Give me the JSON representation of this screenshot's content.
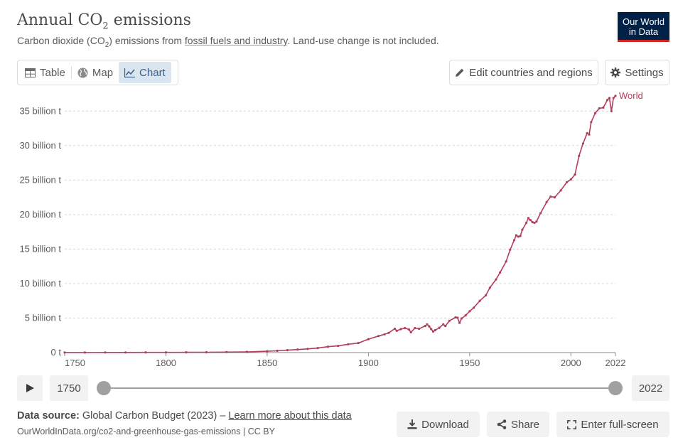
{
  "header": {
    "title_main": "Annual CO",
    "title_sub": "2",
    "title_end": " emissions",
    "subtitle_a": "Carbon dioxide (CO",
    "subtitle_sub": "2",
    "subtitle_b": ") emissions from ",
    "subtitle_link": "fossil fuels and industry",
    "subtitle_c": ". Land-use change is not included.",
    "logo_line1": "Our World",
    "logo_line2": "in Data"
  },
  "tabs": [
    {
      "label": "Table",
      "icon": "table-icon"
    },
    {
      "label": "Map",
      "icon": "globe-icon"
    },
    {
      "label": "Chart",
      "icon": "line-chart-icon",
      "active": true
    }
  ],
  "toolbar": {
    "edit_label": "Edit countries and regions",
    "settings_label": "Settings"
  },
  "timeline": {
    "start_label": "1750",
    "end_label": "2022"
  },
  "footer": {
    "source_label": "Data source:",
    "source_text": " Global Carbon Budget (2023) – ",
    "learn_more": "Learn more about this data",
    "url": "OurWorldInData.org/co2-and-greenhouse-gas-emissions | CC BY",
    "download_label": "Download",
    "share_label": "Share",
    "fullscreen_label": "Enter full-screen"
  },
  "colors": {
    "series": "#b13f5a",
    "accent": "#3a5f8a",
    "logo_bg": "#002147",
    "logo_bar": "#ce261e"
  },
  "chart_data": {
    "type": "line",
    "grid": true,
    "ylim": [
      0,
      37.5
    ],
    "xlim": [
      1750,
      2022
    ],
    "x_ticks": [
      1750,
      1800,
      1850,
      1900,
      1950,
      2000,
      2022
    ],
    "y_ticks": [
      {
        "value": 0,
        "label": "0 t"
      },
      {
        "value": 5,
        "label": "5 billion t"
      },
      {
        "value": 10,
        "label": "10 billion t"
      },
      {
        "value": 15,
        "label": "15 billion t"
      },
      {
        "value": 20,
        "label": "20 billion t"
      },
      {
        "value": 25,
        "label": "25 billion t"
      },
      {
        "value": 30,
        "label": "30 billion t"
      },
      {
        "value": 35,
        "label": "35 billion t"
      }
    ],
    "series": [
      {
        "name": "World",
        "x": [
          1750,
          1760,
          1770,
          1780,
          1790,
          1800,
          1810,
          1820,
          1830,
          1840,
          1850,
          1855,
          1860,
          1865,
          1870,
          1875,
          1880,
          1885,
          1890,
          1895,
          1900,
          1905,
          1908,
          1910,
          1913,
          1914,
          1916,
          1918,
          1920,
          1921,
          1923,
          1925,
          1928,
          1929,
          1930,
          1931,
          1932,
          1933,
          1935,
          1937,
          1938,
          1940,
          1943,
          1944,
          1945,
          1946,
          1948,
          1950,
          1952,
          1955,
          1958,
          1960,
          1963,
          1965,
          1968,
          1970,
          1972,
          1973,
          1974,
          1975,
          1976,
          1978,
          1979,
          1980,
          1981,
          1982,
          1983,
          1985,
          1988,
          1990,
          1992,
          1995,
          1998,
          2000,
          2002,
          2004,
          2006,
          2008,
          2009,
          2010,
          2012,
          2014,
          2016,
          2018,
          2019,
          2020,
          2021,
          2022
        ],
        "y": [
          0.01,
          0.01,
          0.02,
          0.02,
          0.03,
          0.03,
          0.04,
          0.05,
          0.07,
          0.1,
          0.2,
          0.26,
          0.35,
          0.44,
          0.54,
          0.66,
          0.85,
          0.97,
          1.21,
          1.38,
          1.95,
          2.4,
          2.65,
          2.85,
          3.45,
          3.15,
          3.4,
          3.55,
          3.35,
          2.95,
          3.55,
          3.45,
          3.85,
          4.1,
          3.8,
          3.4,
          3.05,
          3.25,
          3.6,
          4.1,
          3.85,
          4.6,
          5.1,
          5.05,
          4.3,
          4.95,
          5.4,
          6.0,
          6.5,
          7.5,
          8.3,
          9.4,
          10.6,
          11.6,
          13.2,
          14.9,
          16.3,
          17.0,
          16.8,
          16.9,
          17.8,
          18.8,
          19.5,
          19.2,
          18.9,
          18.8,
          19.0,
          20.2,
          21.8,
          22.6,
          22.5,
          23.5,
          24.7,
          25.1,
          25.8,
          28.5,
          30.3,
          31.8,
          31.6,
          33.4,
          34.7,
          35.4,
          35.5,
          36.6,
          36.9,
          35.0,
          36.9,
          37.2
        ]
      }
    ]
  }
}
